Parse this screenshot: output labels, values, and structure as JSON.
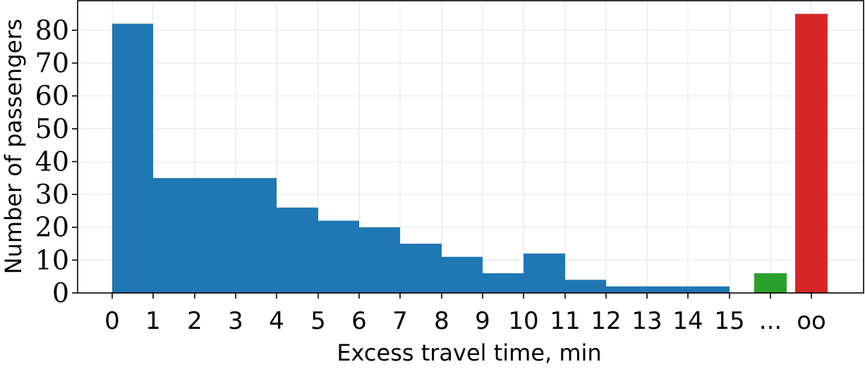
{
  "chart_data": {
    "type": "bar",
    "xlabel": "Excess travel time, min",
    "ylabel": "Number of passengers",
    "ylim": [
      0,
      89
    ],
    "yticks": [
      0,
      10,
      20,
      30,
      40,
      50,
      60,
      70,
      80
    ],
    "grid": true,
    "x_tick_labels": [
      "0",
      "1",
      "2",
      "3",
      "4",
      "5",
      "6",
      "7",
      "8",
      "9",
      "10",
      "11",
      "12",
      "13",
      "14",
      "15",
      "...",
      "oo"
    ],
    "histogram": {
      "bin_edges": [
        0,
        1,
        2,
        3,
        4,
        5,
        6,
        7,
        8,
        9,
        10,
        11,
        12,
        13,
        14,
        15
      ],
      "values": [
        82,
        35,
        35,
        35,
        26,
        22,
        20,
        15,
        11,
        6,
        12,
        4,
        2,
        2,
        2
      ],
      "color": "#1f77b4"
    },
    "extra_bars": [
      {
        "category": "...",
        "value": 6,
        "color": "#2ca02c"
      },
      {
        "category": "oo",
        "value": 85,
        "color": "#d62728"
      }
    ]
  }
}
